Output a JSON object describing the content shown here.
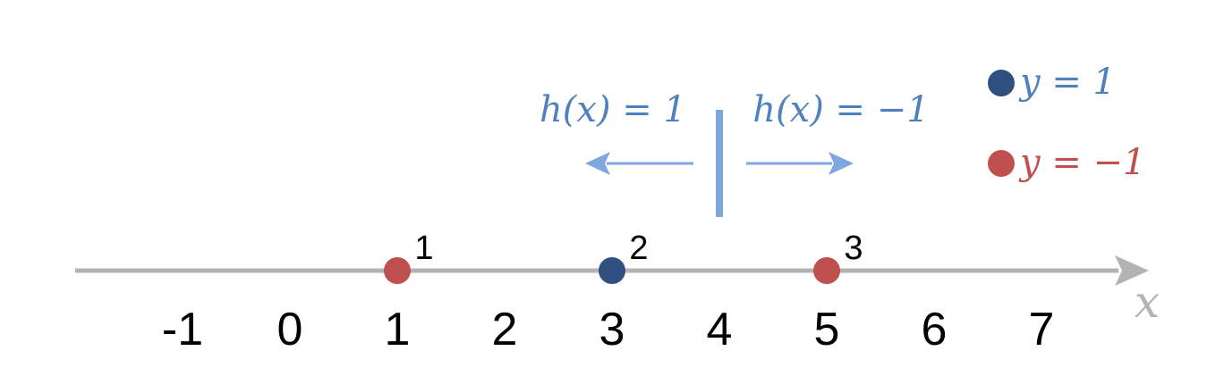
{
  "colors": {
    "axis": "#b3b3b3",
    "positive_point": "#2f4f7f",
    "negative_point": "#c0504d",
    "threshold": "#7ea6e0",
    "math_text": "#4f81bd",
    "legend_negative_text": "#c0504d",
    "tick_text": "#000000"
  },
  "axis": {
    "variable": "x",
    "ticks": [
      "-1",
      "0",
      "1",
      "2",
      "3",
      "4",
      "5",
      "6",
      "7"
    ]
  },
  "points": [
    {
      "x": 1,
      "label": "1",
      "class": "negative"
    },
    {
      "x": 3,
      "label": "2",
      "class": "positive"
    },
    {
      "x": 5,
      "label": "3",
      "class": "negative"
    }
  ],
  "threshold": {
    "x": 4,
    "left_label": "h(x) = 1",
    "right_label": "h(x) = −1"
  },
  "legend": [
    {
      "class": "positive",
      "label": "y = 1"
    },
    {
      "class": "negative",
      "label": "y = −1"
    }
  ]
}
